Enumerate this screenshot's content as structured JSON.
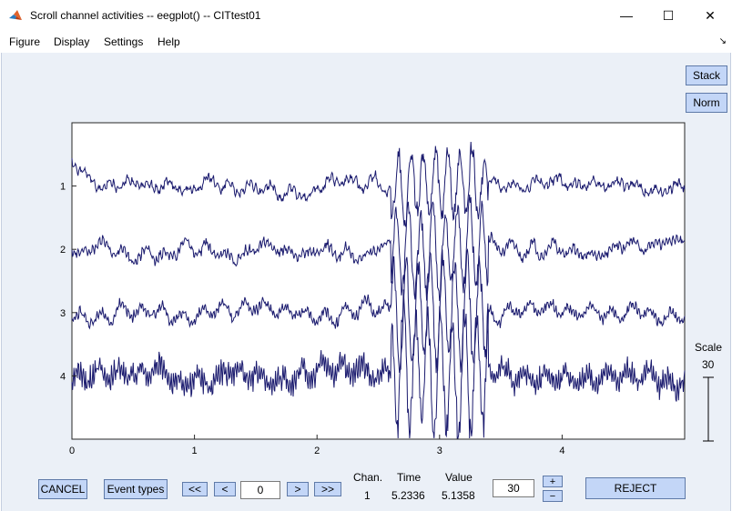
{
  "window": {
    "title": "Scroll channel activities -- eegplot() -- CITtest01",
    "minimize_glyph": "—",
    "maximize_glyph": "☐",
    "close_glyph": "✕",
    "app_icon": "matlab-icon"
  },
  "menu": {
    "items": [
      "Figure",
      "Display",
      "Settings",
      "Help"
    ],
    "corner_glyph": "↘"
  },
  "side_buttons": {
    "stack": "Stack",
    "norm": "Norm"
  },
  "scale": {
    "label": "Scale",
    "value": "30"
  },
  "plot": {
    "line_color": "#1a1a6e",
    "background": "#ffffff",
    "y_ticks": [
      "1",
      "2",
      "3",
      "4"
    ],
    "x_ticks": [
      "0",
      "1",
      "2",
      "3",
      "4"
    ],
    "channel_count": 4,
    "time_window_s": 5
  },
  "bottom": {
    "cancel": "CANCEL",
    "event_types": "Event types",
    "nav_first": "<<",
    "nav_prev": "<",
    "position": "0",
    "nav_next": ">",
    "nav_last": ">>",
    "chan_header": "Chan.",
    "time_header": "Time",
    "value_header": "Value",
    "chan_value": "1",
    "time_value": "5.2336",
    "value_value": "5.1358",
    "scale_input": "30",
    "plus": "+",
    "minus": "−",
    "reject": "REJECT"
  }
}
